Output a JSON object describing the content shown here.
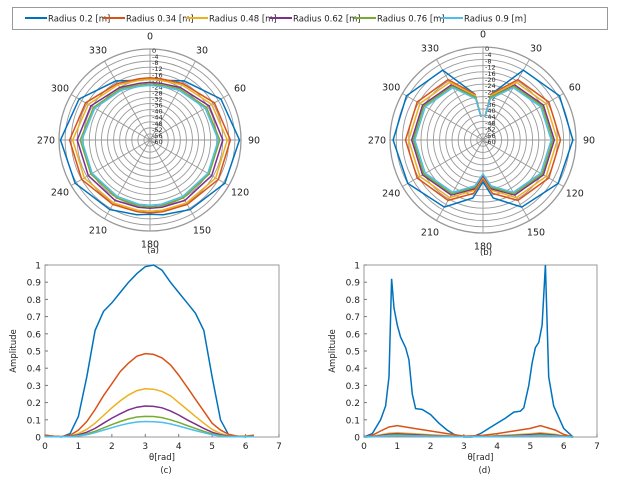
{
  "legend": {
    "placement": "top",
    "items": [
      "Radius 0.2 [m]",
      "Radius 0.34 [m]",
      "Radius 0.48 [m]",
      "Radius 0.62 [m]",
      "Radius 0.76 [m]",
      "Radius 0.9 [m]"
    ]
  },
  "colors": [
    "#0072BD",
    "#D95319",
    "#EDB120",
    "#7E2F8E",
    "#77AC30",
    "#4DBEEE"
  ],
  "chart_data": [
    {
      "type": "polar",
      "caption": "(a)",
      "angle_ticks": [
        "0",
        "30",
        "60",
        "90",
        "120",
        "150",
        "180",
        "210",
        "240",
        "270",
        "300",
        "330"
      ],
      "radial_ticks": [
        "0",
        "-4",
        "-8",
        "-12",
        "-16",
        "-20",
        "-24",
        "-28",
        "-32",
        "-36",
        "-40",
        "-44",
        "-48",
        "-52",
        "-56",
        "-60"
      ],
      "rlim": [
        -60,
        0
      ],
      "angles_deg": [
        0,
        10,
        30,
        60,
        90,
        120,
        150,
        170,
        180,
        190,
        210,
        240,
        270,
        300,
        330,
        350
      ],
      "series": [
        {
          "name": "Radius 0.2 [m]",
          "values": [
            -20,
            -20,
            -15,
            -6,
            -1,
            -3,
            -7,
            -10,
            -11,
            -10,
            -7,
            -3,
            -1,
            -6,
            -15,
            -20
          ]
        },
        {
          "name": "Radius 0.34 [m]",
          "values": [
            -19,
            -19,
            -17,
            -11,
            -7,
            -8,
            -11,
            -12,
            -12,
            -12,
            -11,
            -8,
            -7,
            -11,
            -17,
            -19
          ]
        },
        {
          "name": "Radius 0.48 [m]",
          "values": [
            -20,
            -20,
            -18,
            -13,
            -9,
            -10,
            -12,
            -13,
            -13,
            -13,
            -12,
            -10,
            -9,
            -13,
            -18,
            -20
          ]
        },
        {
          "name": "Radius 0.62 [m]",
          "values": [
            -22,
            -22,
            -20,
            -15,
            -12,
            -13,
            -14,
            -15,
            -15,
            -15,
            -14,
            -13,
            -12,
            -15,
            -20,
            -22
          ]
        },
        {
          "name": "Radius 0.76 [m]",
          "values": [
            -23,
            -23,
            -21,
            -17,
            -14,
            -15,
            -16,
            -16,
            -16,
            -16,
            -16,
            -15,
            -14,
            -17,
            -21,
            -23
          ]
        },
        {
          "name": "Radius 0.9 [m]",
          "values": [
            -24,
            -24,
            -22,
            -18,
            -15,
            -16,
            -17,
            -17,
            -17,
            -17,
            -17,
            -16,
            -15,
            -18,
            -22,
            -24
          ]
        }
      ]
    },
    {
      "type": "polar",
      "caption": "(b)",
      "angle_ticks": [
        "0",
        "30",
        "60",
        "90",
        "120",
        "150",
        "180",
        "210",
        "240",
        "270",
        "300",
        "330"
      ],
      "radial_ticks": [
        "0",
        "-4",
        "-8",
        "-12",
        "-16",
        "-20",
        "-24",
        "-28",
        "-32",
        "-36",
        "-40",
        "-44",
        "-48",
        "-52",
        "-56",
        "-60"
      ],
      "rlim": [
        -60,
        0
      ],
      "angles_deg": [
        5,
        10,
        30,
        60,
        90,
        120,
        150,
        170,
        180,
        190,
        210,
        240,
        270,
        300,
        330,
        350,
        355
      ],
      "series": [
        {
          "name": "Radius 0.2 [m]",
          "values": [
            -45,
            -30,
            -8,
            -3,
            -2,
            -4,
            -10,
            -22,
            -33,
            -22,
            -10,
            -4,
            -2,
            -3,
            -8,
            -30,
            -45
          ]
        },
        {
          "name": "Radius 0.34 [m]",
          "values": [
            -45,
            -30,
            -15,
            -11,
            -10,
            -11,
            -15,
            -25,
            -35,
            -25,
            -15,
            -11,
            -10,
            -11,
            -15,
            -30,
            -45
          ]
        },
        {
          "name": "Radius 0.48 [m]",
          "values": [
            -45,
            -31,
            -17,
            -13,
            -12,
            -13,
            -17,
            -27,
            -36,
            -27,
            -17,
            -13,
            -12,
            -13,
            -17,
            -31,
            -45
          ]
        },
        {
          "name": "Radius 0.62 [m]",
          "values": [
            -45,
            -32,
            -19,
            -15,
            -14,
            -15,
            -19,
            -28,
            -37,
            -28,
            -19,
            -15,
            -14,
            -15,
            -19,
            -32,
            -45
          ]
        },
        {
          "name": "Radius 0.76 [m]",
          "values": [
            -45,
            -32,
            -20,
            -16,
            -15,
            -16,
            -20,
            -29,
            -38,
            -29,
            -20,
            -16,
            -15,
            -16,
            -20,
            -32,
            -45
          ]
        },
        {
          "name": "Radius 0.9 [m]",
          "values": [
            -45,
            -33,
            -21,
            -17,
            -16,
            -17,
            -21,
            -30,
            -38,
            -30,
            -21,
            -17,
            -16,
            -17,
            -21,
            -33,
            -45
          ]
        }
      ]
    },
    {
      "type": "line",
      "caption": "(c)",
      "xlabel": "θ[rad]",
      "ylabel": "Amplitude",
      "xlim": [
        0,
        7
      ],
      "ylim": [
        0,
        1
      ],
      "xticks": [
        "0",
        "1",
        "2",
        "3",
        "4",
        "5",
        "6",
        "7"
      ],
      "yticks": [
        "0",
        "0.1",
        "0.2",
        "0.3",
        "0.4",
        "0.5",
        "0.6",
        "0.7",
        "0.8",
        "0.9",
        "1"
      ],
      "x": [
        0,
        0.25,
        0.5,
        0.75,
        1,
        1.25,
        1.5,
        1.75,
        2,
        2.25,
        2.5,
        2.75,
        3,
        3.25,
        3.5,
        3.75,
        4,
        4.25,
        4.5,
        4.75,
        5,
        5.25,
        5.5,
        5.75,
        6,
        6.25
      ],
      "series": [
        {
          "name": "Radius 0.2 [m]",
          "values": [
            0.01,
            0.005,
            0,
            0.02,
            0.12,
            0.35,
            0.62,
            0.73,
            0.78,
            0.84,
            0.9,
            0.95,
            0.99,
            1.0,
            0.97,
            0.9,
            0.84,
            0.78,
            0.72,
            0.62,
            0.35,
            0.1,
            0.01,
            0.005,
            0,
            0.01
          ]
        },
        {
          "name": "Radius 0.34 [m]",
          "values": [
            0.01,
            0.005,
            0.003,
            0.01,
            0.04,
            0.09,
            0.16,
            0.24,
            0.31,
            0.38,
            0.43,
            0.47,
            0.485,
            0.48,
            0.46,
            0.42,
            0.36,
            0.29,
            0.22,
            0.15,
            0.08,
            0.04,
            0.015,
            0.005,
            0.005,
            0.01
          ]
        },
        {
          "name": "Radius 0.48 [m]",
          "values": [
            0.005,
            0.003,
            0.002,
            0.005,
            0.02,
            0.045,
            0.08,
            0.125,
            0.17,
            0.21,
            0.245,
            0.27,
            0.28,
            0.278,
            0.265,
            0.24,
            0.2,
            0.16,
            0.12,
            0.08,
            0.045,
            0.02,
            0.008,
            0.003,
            0.003,
            0.005
          ]
        },
        {
          "name": "Radius 0.62 [m]",
          "values": [
            0.004,
            0.002,
            0.001,
            0.004,
            0.012,
            0.028,
            0.05,
            0.08,
            0.11,
            0.135,
            0.158,
            0.173,
            0.18,
            0.178,
            0.17,
            0.152,
            0.128,
            0.1,
            0.075,
            0.05,
            0.028,
            0.012,
            0.005,
            0.002,
            0.002,
            0.004
          ]
        },
        {
          "name": "Radius 0.76 [m]",
          "values": [
            0.003,
            0.002,
            0.001,
            0.003,
            0.008,
            0.018,
            0.033,
            0.053,
            0.072,
            0.09,
            0.105,
            0.116,
            0.12,
            0.119,
            0.113,
            0.1,
            0.085,
            0.067,
            0.05,
            0.033,
            0.018,
            0.008,
            0.003,
            0.001,
            0.001,
            0.003
          ]
        },
        {
          "name": "Radius 0.9 [m]",
          "values": [
            0.002,
            0.001,
            0.001,
            0.002,
            0.006,
            0.013,
            0.025,
            0.04,
            0.054,
            0.068,
            0.079,
            0.087,
            0.09,
            0.089,
            0.085,
            0.076,
            0.064,
            0.05,
            0.037,
            0.025,
            0.013,
            0.006,
            0.002,
            0.001,
            0.001,
            0.002
          ]
        }
      ]
    },
    {
      "type": "line",
      "caption": "(d)",
      "xlabel": "θ[rad]",
      "ylabel": "Amplitude",
      "xlim": [
        0,
        7
      ],
      "ylim": [
        0,
        1
      ],
      "xticks": [
        "0",
        "1",
        "2",
        "3",
        "4",
        "5",
        "6",
        "7"
      ],
      "yticks": [
        "0",
        "0.1",
        "0.2",
        "0.3",
        "0.4",
        "0.5",
        "0.6",
        "0.7",
        "0.8",
        "0.9",
        "1"
      ],
      "series": [
        {
          "name": "Radius 0.2 [m]",
          "x": [
            0,
            0.25,
            0.5,
            0.65,
            0.75,
            0.83,
            0.9,
            1,
            1.1,
            1.25,
            1.35,
            1.45,
            1.55,
            1.75,
            2,
            2.25,
            2.5,
            2.75,
            3,
            3.25,
            3.5,
            3.75,
            4,
            4.25,
            4.5,
            4.7,
            4.8,
            4.95,
            5.05,
            5.15,
            5.25,
            5.35,
            5.45,
            5.55,
            5.7,
            6,
            6.28
          ],
          "values": [
            0,
            0.02,
            0.1,
            0.18,
            0.35,
            0.92,
            0.75,
            0.65,
            0.58,
            0.52,
            0.45,
            0.25,
            0.165,
            0.16,
            0.13,
            0.08,
            0.04,
            0.01,
            0,
            0,
            0.02,
            0.05,
            0.08,
            0.11,
            0.145,
            0.15,
            0.17,
            0.3,
            0.43,
            0.52,
            0.55,
            0.65,
            1.0,
            0.35,
            0.18,
            0.05,
            0
          ]
        },
        {
          "name": "Radius 0.34 [m]",
          "x": [
            0,
            0.25,
            0.5,
            0.75,
            1,
            1.5,
            2,
            2.5,
            3,
            3.5,
            4,
            4.5,
            5,
            5.3,
            5.75,
            6,
            6.28
          ],
          "values": [
            0,
            0.01,
            0.035,
            0.058,
            0.066,
            0.05,
            0.035,
            0.02,
            0.005,
            0.008,
            0.02,
            0.035,
            0.05,
            0.066,
            0.04,
            0.015,
            0
          ]
        },
        {
          "name": "Radius 0.48 [m]",
          "x": [
            0,
            0.25,
            0.5,
            0.75,
            1,
            1.5,
            2,
            2.5,
            3,
            3.5,
            4,
            4.5,
            5,
            5.3,
            5.75,
            6,
            6.28
          ],
          "values": [
            0,
            0.004,
            0.013,
            0.022,
            0.025,
            0.019,
            0.013,
            0.008,
            0.002,
            0.003,
            0.008,
            0.013,
            0.019,
            0.025,
            0.015,
            0.006,
            0
          ]
        },
        {
          "name": "Radius 0.62 [m]",
          "x": [
            0,
            0.25,
            0.5,
            0.75,
            1,
            1.5,
            2,
            2.5,
            3,
            3.5,
            4,
            4.5,
            5,
            5.3,
            5.75,
            6,
            6.28
          ],
          "values": [
            0,
            0.003,
            0.009,
            0.016,
            0.018,
            0.014,
            0.009,
            0.006,
            0.001,
            0.002,
            0.006,
            0.009,
            0.014,
            0.018,
            0.011,
            0.004,
            0
          ]
        },
        {
          "name": "Radius 0.76 [m]",
          "x": [
            0,
            0.25,
            0.5,
            0.75,
            1,
            1.5,
            2,
            2.5,
            3,
            3.5,
            4,
            4.5,
            5,
            5.3,
            5.75,
            6,
            6.28
          ],
          "values": [
            0,
            0.002,
            0.006,
            0.011,
            0.012,
            0.009,
            0.006,
            0.004,
            0.001,
            0.001,
            0.004,
            0.006,
            0.009,
            0.012,
            0.007,
            0.003,
            0
          ]
        },
        {
          "name": "Radius 0.9 [m]",
          "x": [
            0,
            0.25,
            0.5,
            0.75,
            1,
            1.5,
            2,
            2.5,
            3,
            3.5,
            4,
            4.5,
            5,
            5.3,
            5.75,
            6,
            6.28
          ],
          "values": [
            0,
            0.001,
            0.004,
            0.007,
            0.008,
            0.006,
            0.004,
            0.003,
            0.001,
            0.001,
            0.003,
            0.004,
            0.006,
            0.008,
            0.005,
            0.002,
            0
          ]
        }
      ]
    }
  ]
}
